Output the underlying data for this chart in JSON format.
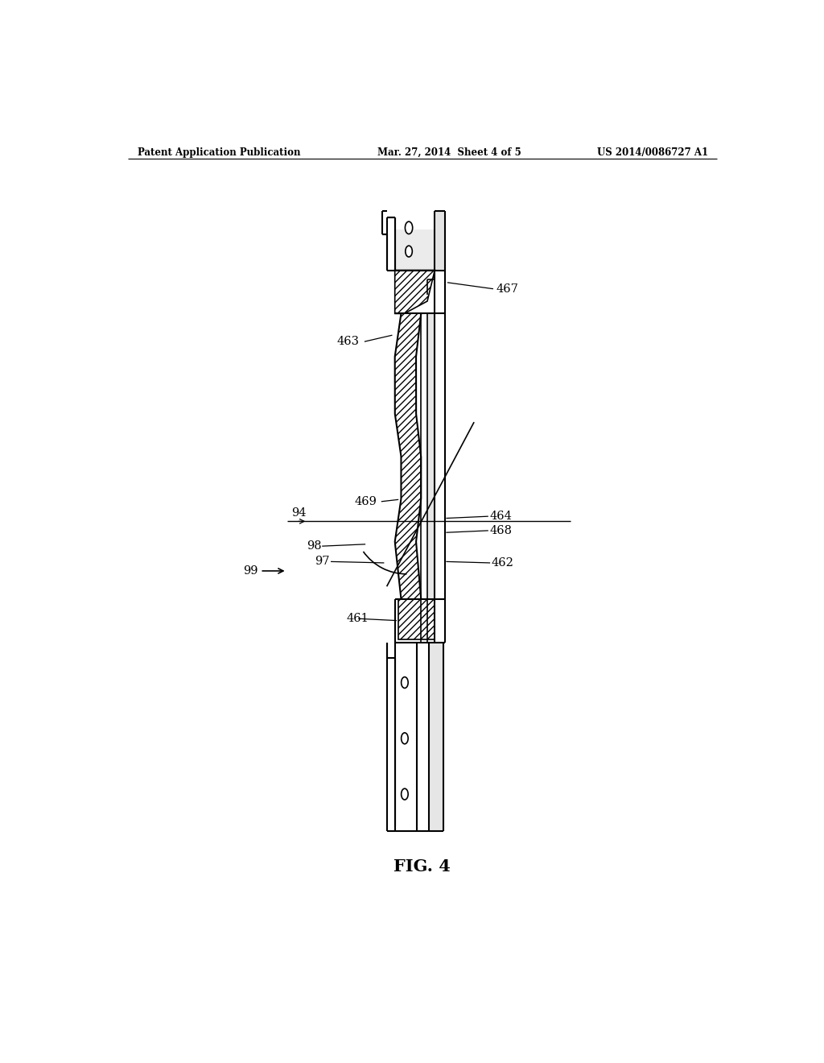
{
  "bg_color": "#ffffff",
  "header_left": "Patent Application Publication",
  "header_mid": "Mar. 27, 2014  Sheet 4 of 5",
  "header_right": "US 2014/0086727 A1",
  "fig_label": "FIG. 4",
  "stipple_color": "#c8c8c8",
  "hatch_color": "#d0d0d0"
}
